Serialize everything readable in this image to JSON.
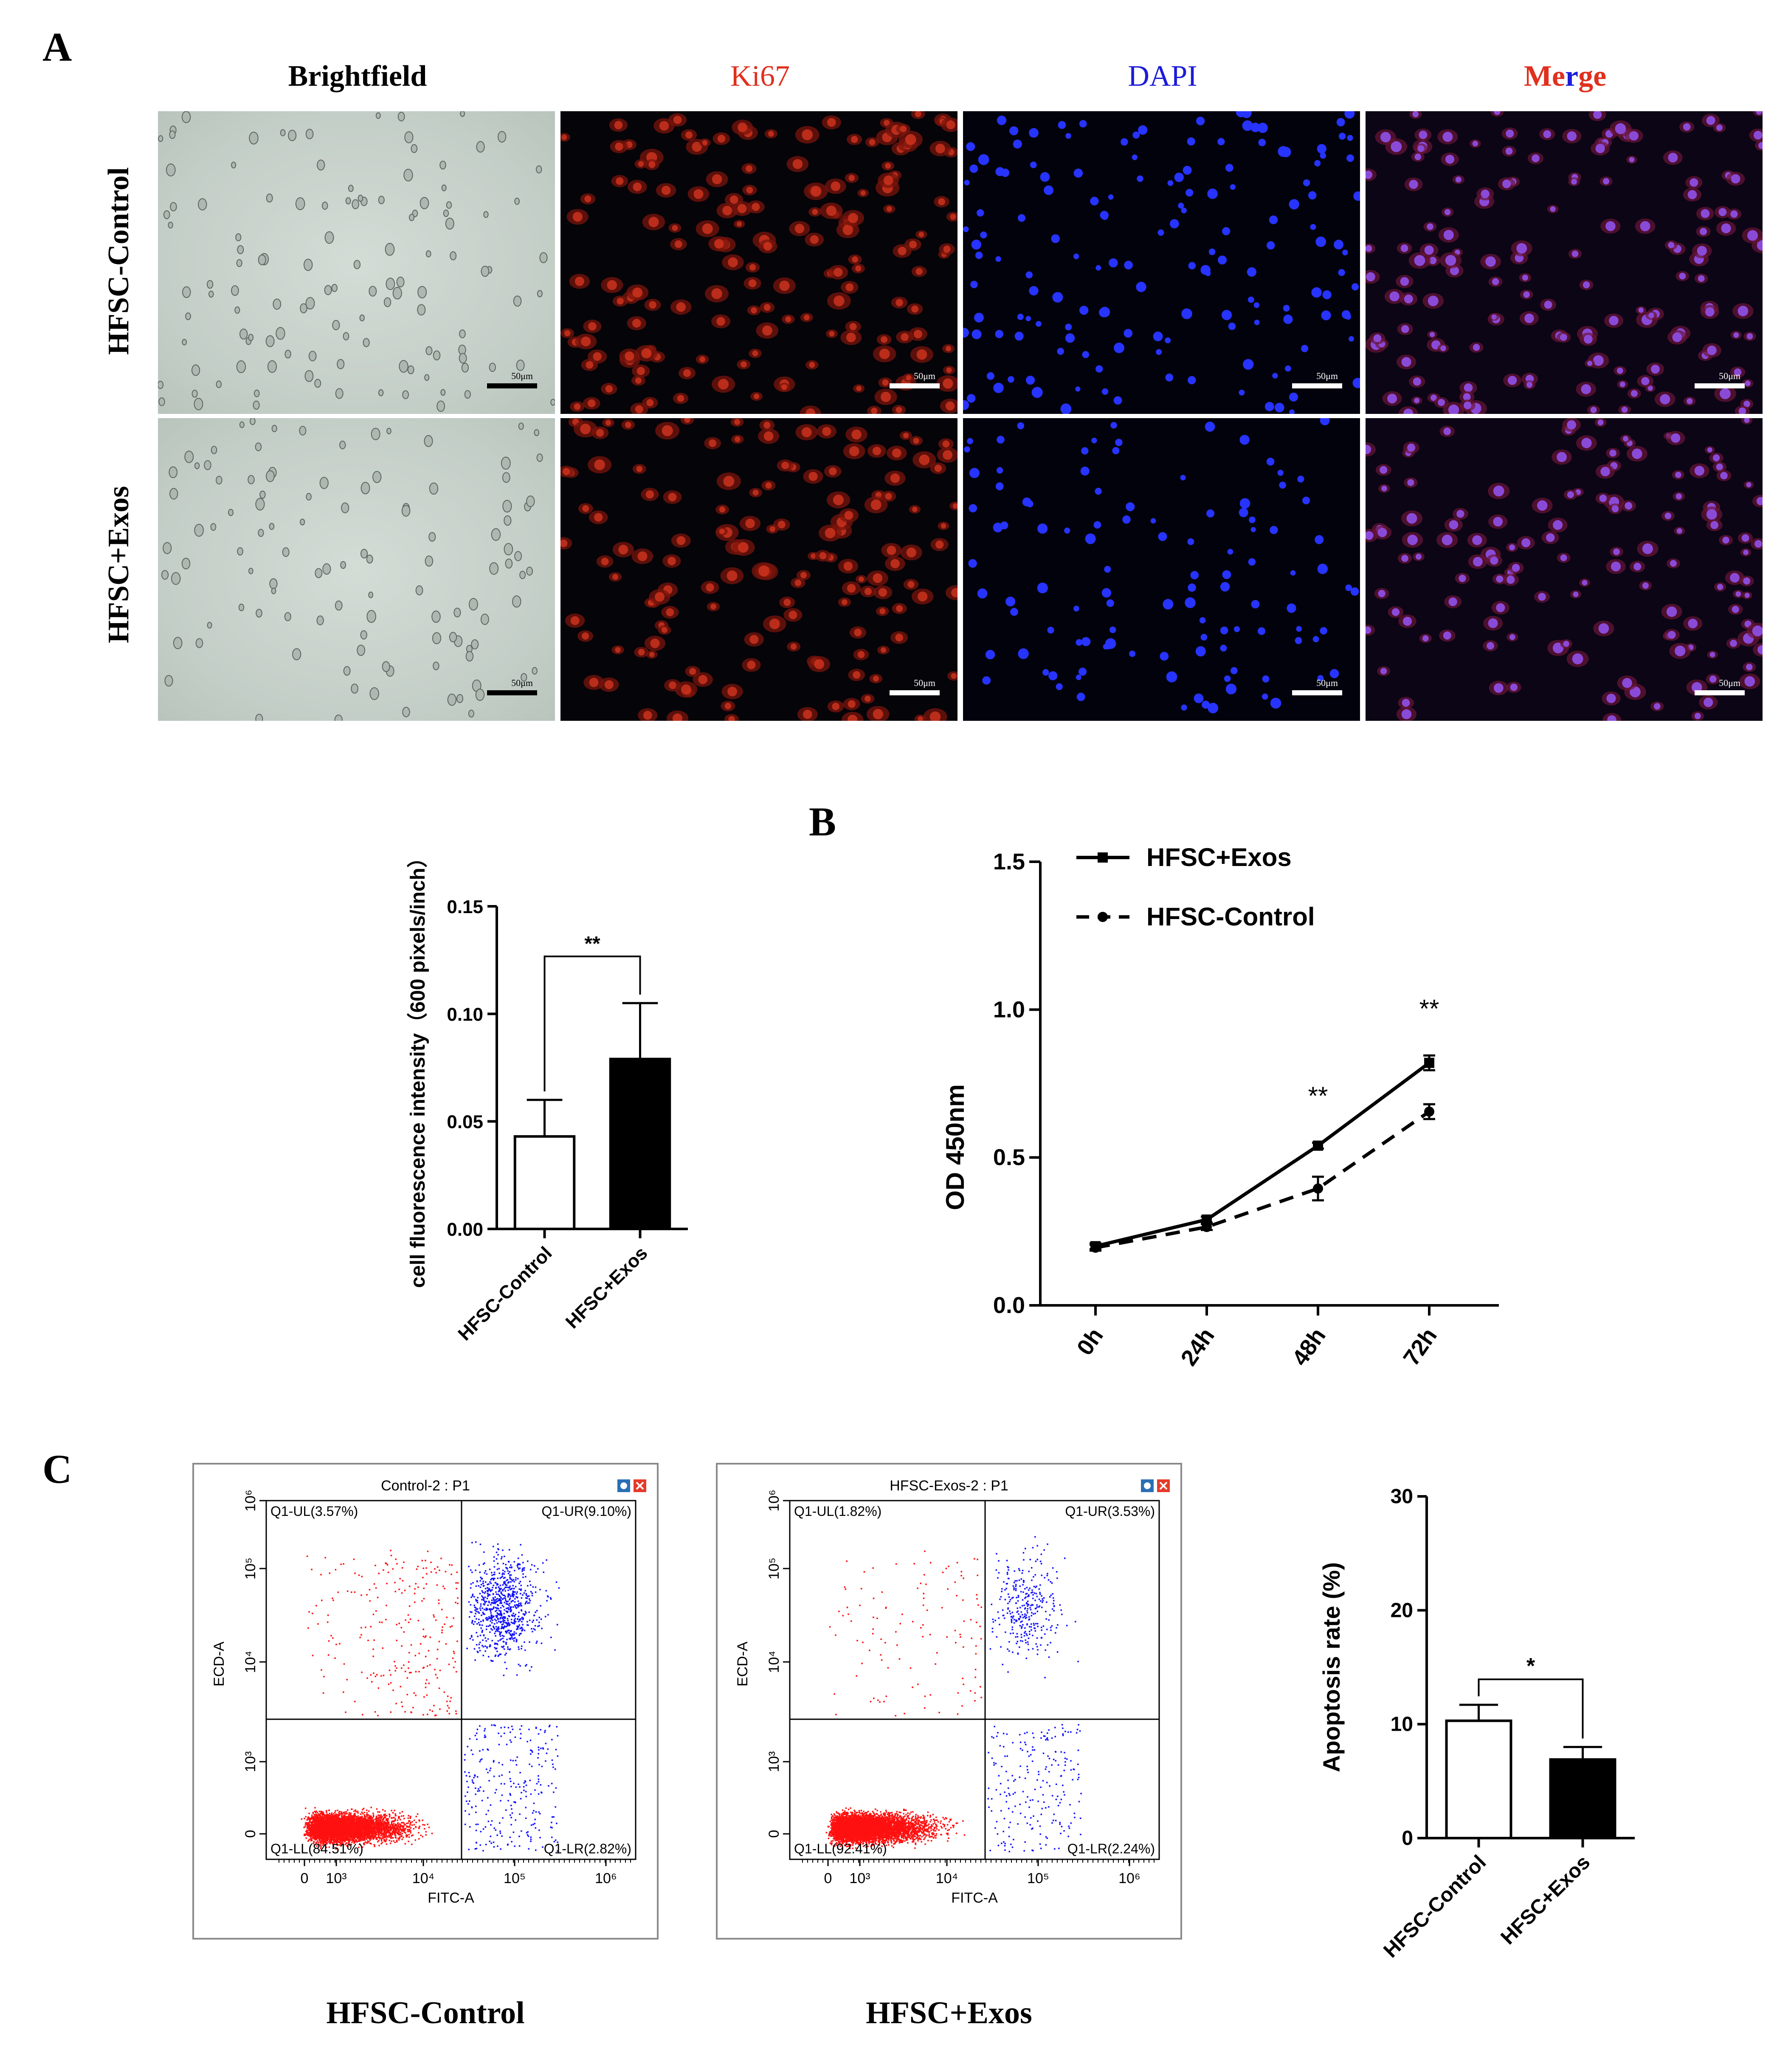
{
  "panels": {
    "a": "A",
    "b": "B",
    "c": "C"
  },
  "panel_a": {
    "columns": [
      "Brightfield",
      "Ki67",
      "DAPI",
      "Merge"
    ],
    "merge_parts": [
      "Me",
      "r",
      "ge"
    ],
    "rows": [
      "HFSC-Control",
      "HFSC+Exos"
    ],
    "scale_label": "50μm"
  },
  "colors": {
    "ki67": "#e0301e",
    "dapi": "#1c1cd9",
    "red_dot": "#ff2a1a",
    "blue_dot": "#1a2bff"
  },
  "chart_data": [
    {
      "id": "fluorescence",
      "type": "bar",
      "categories": [
        "HFSC-Control",
        "HFSC+Exos"
      ],
      "values": [
        0.043,
        0.079
      ],
      "errors": [
        0.017,
        0.026
      ],
      "fills": [
        "#ffffff",
        "#000000"
      ],
      "ylabel": "cell fluorescence intensity（600 pixels/inch）",
      "ylim": [
        0,
        0.15
      ],
      "yticks": [
        "0.00",
        "0.05",
        "0.10",
        "0.15"
      ],
      "significance": "**"
    },
    {
      "id": "od",
      "type": "line",
      "x": [
        "0h",
        "24h",
        "48h",
        "72h"
      ],
      "series": [
        {
          "name": "HFSC+Exos",
          "values": [
            0.2,
            0.29,
            0.54,
            0.82
          ],
          "errors": [
            0.01,
            0.01,
            0.01,
            0.025
          ],
          "style": "solid",
          "marker": "square"
        },
        {
          "name": "HFSC-Control",
          "values": [
            0.195,
            0.265,
            0.395,
            0.655
          ],
          "errors": [
            0.01,
            0.01,
            0.04,
            0.025
          ],
          "style": "dashed",
          "marker": "circle"
        }
      ],
      "ylabel": "OD 450nm",
      "ylim": [
        0,
        1.5
      ],
      "yticks": [
        "0.0",
        "0.5",
        "1.0",
        "1.5"
      ],
      "annotations": [
        {
          "x": "48h",
          "text": "**"
        },
        {
          "x": "72h",
          "text": "**"
        }
      ],
      "legend": "top-left"
    },
    {
      "id": "flow-control",
      "type": "scatter",
      "title": "Control-2 : P1",
      "xlabel": "FITC-A",
      "ylabel": "ECD-A",
      "xticks": [
        "0",
        "10³",
        "10⁴",
        "10⁵",
        "10⁶"
      ],
      "yticks": [
        "0",
        "10³",
        "10⁴",
        "10⁵",
        "10⁶"
      ],
      "quadrants": {
        "UL": "Q1-UL(3.57%)",
        "UR": "Q1-UR(9.10%)",
        "LL": "Q1-LL(84.51%)",
        "LR": "Q1-LR(2.82%)"
      },
      "percentages": {
        "UL": 3.57,
        "UR": 9.1,
        "LL": 84.51,
        "LR": 2.82
      },
      "caption": "HFSC-Control"
    },
    {
      "id": "flow-exos",
      "type": "scatter",
      "title": "HFSC-Exos-2 : P1",
      "xlabel": "FITC-A",
      "ylabel": "ECD-A",
      "xticks": [
        "0",
        "10³",
        "10⁴",
        "10⁵",
        "10⁶"
      ],
      "yticks": [
        "0",
        "10³",
        "10⁴",
        "10⁵",
        "10⁶"
      ],
      "quadrants": {
        "UL": "Q1-UL(1.82%)",
        "UR": "Q1-UR(3.53%)",
        "LL": "Q1-LL(92.41%)",
        "LR": "Q1-LR(2.24%)"
      },
      "percentages": {
        "UL": 1.82,
        "UR": 3.53,
        "LL": 92.41,
        "LR": 2.24
      },
      "caption": "HFSC+Exos"
    },
    {
      "id": "apoptosis",
      "type": "bar",
      "categories": [
        "HFSC-Control",
        "HFSC+Exos"
      ],
      "values": [
        10.3,
        6.9
      ],
      "errors": [
        1.4,
        1.1
      ],
      "fills": [
        "#ffffff",
        "#000000"
      ],
      "ylabel": "Apoptosis rate (%)",
      "ylim": [
        0,
        30
      ],
      "yticks": [
        "0",
        "10",
        "20",
        "30"
      ],
      "significance": "*"
    }
  ]
}
